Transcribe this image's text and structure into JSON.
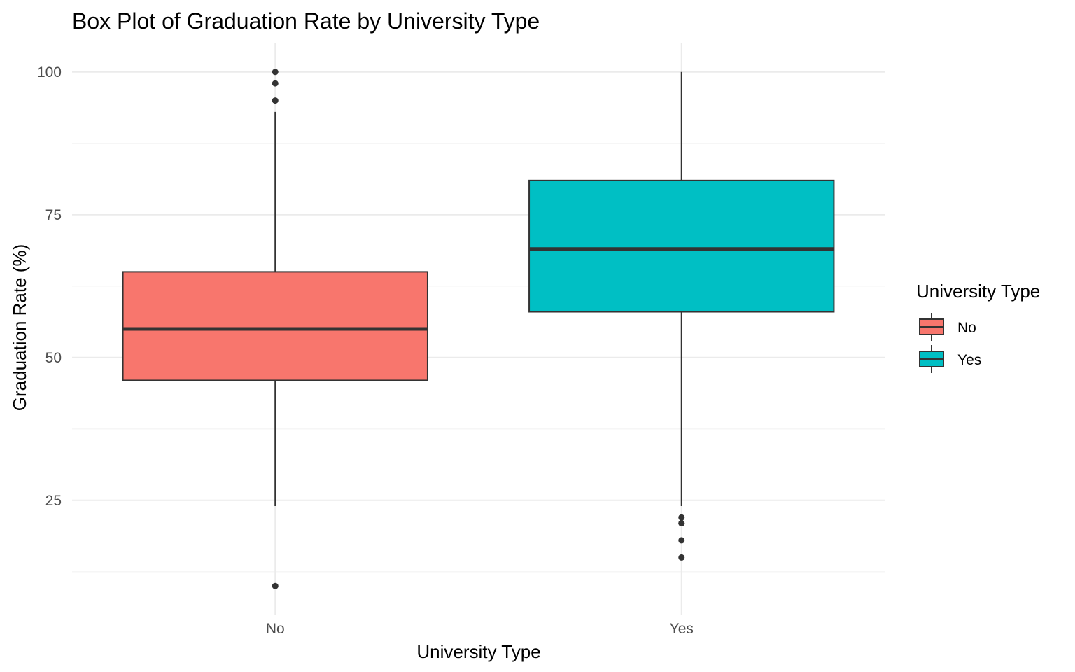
{
  "chart_data": {
    "type": "box",
    "title": "Box Plot of Graduation Rate by University Type",
    "xlabel": "University Type",
    "ylabel": "Graduation Rate (%)",
    "ylim": [
      5,
      105
    ],
    "yticks": [
      25,
      50,
      75,
      100
    ],
    "ytick_labels": [
      "25",
      "50",
      "75",
      "100"
    ],
    "categories": [
      "No",
      "Yes"
    ],
    "grid": true,
    "legend": {
      "title": "University Type",
      "placement": "right",
      "entries": [
        "No",
        "Yes"
      ]
    },
    "series": [
      {
        "name": "No",
        "color": "#F8766D",
        "whisker_low": 24,
        "q1": 46,
        "median": 55,
        "q3": 65,
        "whisker_high": 93,
        "outliers": [
          10,
          95,
          98,
          100
        ]
      },
      {
        "name": "Yes",
        "color": "#00BFC4",
        "whisker_low": 24,
        "q1": 58,
        "median": 69,
        "q3": 81,
        "whisker_high": 100,
        "outliers": [
          15,
          18,
          21,
          21,
          22
        ]
      }
    ]
  }
}
